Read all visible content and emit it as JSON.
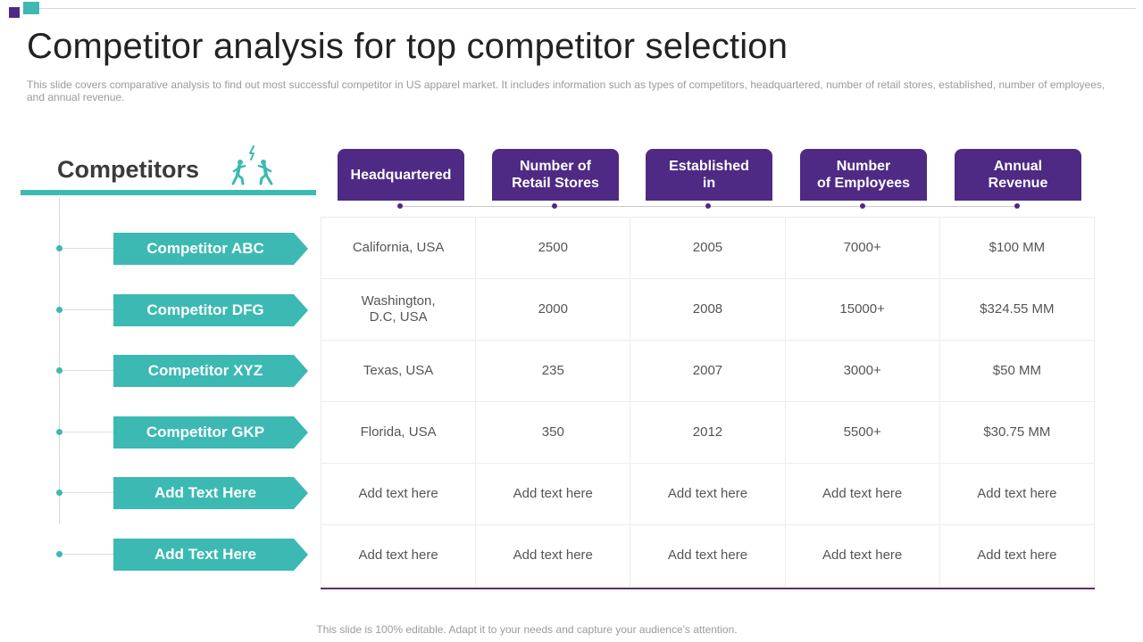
{
  "title": "Competitor analysis for top competitor selection",
  "description": "This slide covers comparative analysis to find out most successful competitor in US apparel market. It includes information such as types of competitors, headquartered, number of retail stores, established, number of employees, and annual revenue.",
  "competitors_heading": "Competitors",
  "icons": {
    "competitors": "people-running-icon"
  },
  "colors": {
    "accent_teal": "#3cb9b3",
    "accent_purple": "#4e2a84"
  },
  "competitors": [
    "Competitor ABC",
    "Competitor DFG",
    "Competitor XYZ",
    "Competitor GKP",
    "Add Text Here",
    "Add Text Here"
  ],
  "columns": [
    "Headquartered",
    "Number of\nRetail Stores",
    "Established\nin",
    "Number\nof Employees",
    "Annual\nRevenue"
  ],
  "rows": [
    [
      "California, USA",
      "2500",
      "2005",
      "7000+",
      "$100 MM"
    ],
    [
      "Washington,\nD.C, USA",
      "2000",
      "2008",
      "15000+",
      "$324.55 MM"
    ],
    [
      "Texas, USA",
      "235",
      "2007",
      "3000+",
      "$50 MM"
    ],
    [
      "Florida, USA",
      "350",
      "2012",
      "5500+",
      "$30.75 MM"
    ],
    [
      "Add text here",
      "Add text here",
      "Add text here",
      "Add text here",
      "Add text here"
    ],
    [
      "Add text here",
      "Add text here",
      "Add text here",
      "Add text here",
      "Add text here"
    ]
  ],
  "footer": "This slide is 100% editable. Adapt it to your needs and capture your audience's attention."
}
